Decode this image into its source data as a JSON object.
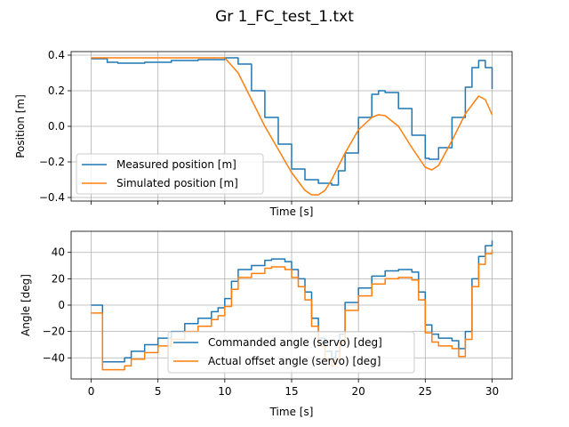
{
  "figure_title": "Gr 1_FC_test_1.txt",
  "colors": {
    "series1": "#1f77b4",
    "series2": "#ff7f0e",
    "grid": "#b0b0b0"
  },
  "chart_data": [
    {
      "type": "line",
      "title": "",
      "xlabel": "Time [s]",
      "ylabel": "Position [m]",
      "xlim": [
        -1.5,
        31.5
      ],
      "ylim": [
        -0.42,
        0.42
      ],
      "xticks": [
        0,
        5,
        10,
        15,
        20,
        25,
        30
      ],
      "xtick_labels_visible": false,
      "yticks": [
        -0.4,
        -0.2,
        0.0,
        0.2,
        0.4
      ],
      "ytick_labels": [
        "−0.4",
        "−0.2",
        "0.0",
        "0.2",
        "0.4"
      ],
      "grid": true,
      "legend_position": "lower-left",
      "series": [
        {
          "name": "Measured position [m]",
          "color": "#1f77b4",
          "step": true,
          "x": [
            0,
            0.9,
            1.2,
            2,
            4,
            6,
            8,
            10,
            11,
            12,
            13,
            14,
            15,
            16,
            17,
            18,
            18.5,
            19,
            20,
            21,
            21.5,
            22,
            23,
            24,
            25,
            25.3,
            26,
            27,
            28,
            28.5,
            29,
            29.5,
            30
          ],
          "y": [
            0.38,
            0.38,
            0.36,
            0.355,
            0.36,
            0.37,
            0.375,
            0.385,
            0.35,
            0.2,
            0.05,
            -0.1,
            -0.24,
            -0.3,
            -0.32,
            -0.33,
            -0.25,
            -0.15,
            0.05,
            0.18,
            0.2,
            0.19,
            0.1,
            -0.05,
            -0.18,
            -0.185,
            -0.12,
            0.05,
            0.22,
            0.33,
            0.37,
            0.33,
            0.21
          ]
        },
        {
          "name": "Simulated position [m]",
          "color": "#ff7f0e",
          "step": false,
          "x": [
            0,
            2,
            4,
            6,
            8,
            9,
            10,
            11,
            12,
            13,
            14,
            15,
            16,
            16.5,
            17,
            17.5,
            18,
            19,
            20,
            21,
            21.5,
            22,
            23,
            24,
            25,
            25.5,
            26,
            27,
            28,
            29,
            29.5,
            30
          ],
          "y": [
            0.385,
            0.385,
            0.385,
            0.385,
            0.385,
            0.385,
            0.385,
            0.3,
            0.15,
            0.0,
            -0.13,
            -0.26,
            -0.36,
            -0.385,
            -0.385,
            -0.36,
            -0.3,
            -0.15,
            -0.02,
            0.05,
            0.065,
            0.06,
            0.0,
            -0.12,
            -0.23,
            -0.245,
            -0.22,
            -0.08,
            0.07,
            0.17,
            0.15,
            0.065
          ]
        }
      ]
    },
    {
      "type": "line",
      "title": "",
      "xlabel": "Time [s]",
      "ylabel": "Angle [deg]",
      "xlim": [
        -1.5,
        31.5
      ],
      "ylim": [
        -56,
        56
      ],
      "xticks": [
        0,
        5,
        10,
        15,
        20,
        25,
        30
      ],
      "xtick_labels": [
        "0",
        "5",
        "10",
        "15",
        "20",
        "25",
        "30"
      ],
      "yticks": [
        -40,
        -20,
        0,
        20,
        40
      ],
      "ytick_labels": [
        "−40",
        "−20",
        "0",
        "20",
        "40"
      ],
      "grid": true,
      "legend_position": "lower-center",
      "series": [
        {
          "name": "Commanded angle (servo) [deg]",
          "color": "#1f77b4",
          "step": true,
          "x": [
            0,
            0.8,
            0.85,
            2,
            2.5,
            3,
            4,
            5,
            6,
            7,
            8,
            9,
            9.5,
            10,
            10.5,
            11,
            12,
            13,
            13.5,
            14,
            14.5,
            15,
            15.5,
            16,
            16.5,
            17,
            17.5,
            18,
            18.3,
            18.6,
            19,
            20,
            21,
            22,
            23,
            24,
            24.5,
            25,
            25.5,
            26,
            27,
            27.5,
            28,
            28.5,
            29,
            29.5,
            30
          ],
          "y": [
            0,
            0,
            -43,
            -43,
            -40,
            -35,
            -30,
            -25,
            -20,
            -14,
            -10,
            -5,
            -2,
            5,
            18,
            27,
            30,
            34,
            35,
            35,
            33,
            27,
            20,
            10,
            -10,
            -25,
            -35,
            -40,
            -35,
            -22,
            2,
            13,
            22,
            26,
            27,
            25,
            10,
            -15,
            -22,
            -25,
            -27,
            -33,
            -20,
            20,
            37,
            45,
            49
          ]
        },
        {
          "name": "Actual offset angle (servo) [deg]",
          "color": "#ff7f0e",
          "step": true,
          "x": [
            0,
            0.8,
            0.85,
            2,
            2.5,
            3,
            4,
            5,
            6,
            7,
            8,
            9,
            9.5,
            10,
            10.5,
            11,
            12,
            13,
            13.5,
            14,
            14.5,
            15,
            15.5,
            16,
            16.5,
            17,
            17.5,
            18,
            18.3,
            18.6,
            19,
            20,
            21,
            22,
            23,
            24,
            24.5,
            25,
            25.5,
            26,
            27,
            27.5,
            28,
            28.5,
            29,
            29.5,
            30
          ],
          "y": [
            -6,
            -6,
            -49,
            -49,
            -46,
            -41,
            -36,
            -31,
            -26,
            -20,
            -16,
            -11,
            -8,
            -1,
            12,
            21,
            24,
            28,
            29,
            29,
            27,
            21,
            14,
            4,
            -16,
            -31,
            -41,
            -46,
            -41,
            -28,
            -4,
            7,
            16,
            20,
            21,
            19,
            4,
            -21,
            -28,
            -31,
            -33,
            -39,
            -26,
            14,
            31,
            39,
            42
          ]
        }
      ]
    }
  ]
}
